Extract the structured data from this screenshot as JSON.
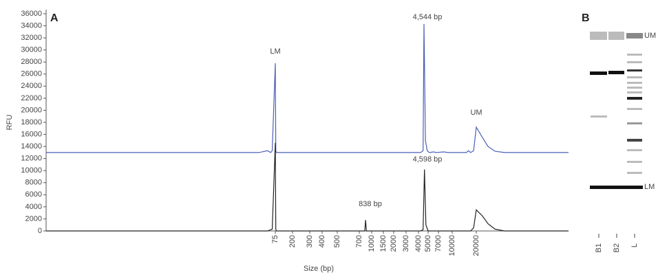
{
  "chart_data": {
    "type": "line",
    "title": "A",
    "xlabel": "Size (bp)",
    "ylabel": "RFU",
    "ylim": [
      0,
      36000
    ],
    "yticks": [
      0,
      2000,
      4000,
      6000,
      8000,
      10000,
      12000,
      14000,
      16000,
      18000,
      20000,
      22000,
      24000,
      26000,
      28000,
      30000,
      32000,
      34000,
      36000
    ],
    "xlim": [
      10,
      60000
    ],
    "xticks": [
      75,
      200,
      300,
      400,
      500,
      700,
      1000,
      1500,
      2000,
      3000,
      4000,
      5000,
      7000,
      10000,
      20000
    ],
    "series": [
      {
        "color": "#4a5fb5",
        "x": [
          10,
          65,
          70,
          72,
          73,
          75,
          77,
          80,
          4200,
          4450,
          4544,
          4700,
          4900,
          5200,
          6000,
          6500,
          8000,
          9000,
          15000,
          16000,
          17000,
          18500,
          20000,
          21500,
          23000,
          25000,
          28000,
          60000
        ],
        "values": [
          13000,
          13000,
          13300,
          13000,
          13300,
          27800,
          13300,
          13000,
          13000,
          13300,
          34300,
          15000,
          13300,
          13000,
          13100,
          13000,
          13100,
          13000,
          13000,
          13300,
          13000,
          13300,
          17200,
          15500,
          14000,
          13200,
          13000,
          13000
        ]
      },
      {
        "color": "#222222",
        "x": [
          10,
          70,
          73,
          75,
          77,
          80,
          780,
          820,
          838,
          860,
          4200,
          4450,
          4598,
          4750,
          5000,
          17000,
          18500,
          20000,
          21500,
          23000,
          25000,
          28000,
          60000
        ],
        "values": [
          0,
          0,
          300,
          14600,
          300,
          0,
          0,
          0,
          1800,
          0,
          0,
          200,
          10200,
          1000,
          0,
          0,
          500,
          3500,
          2500,
          1200,
          300,
          0,
          0
        ]
      }
    ],
    "annotations": [
      "LM",
      "4,544 bp",
      "UM",
      "4,598 bp",
      "838 bp"
    ]
  },
  "gel": {
    "title": "B",
    "lanes": [
      "B1",
      "B2",
      "L"
    ],
    "markers": [
      "UM",
      "LM"
    ]
  }
}
